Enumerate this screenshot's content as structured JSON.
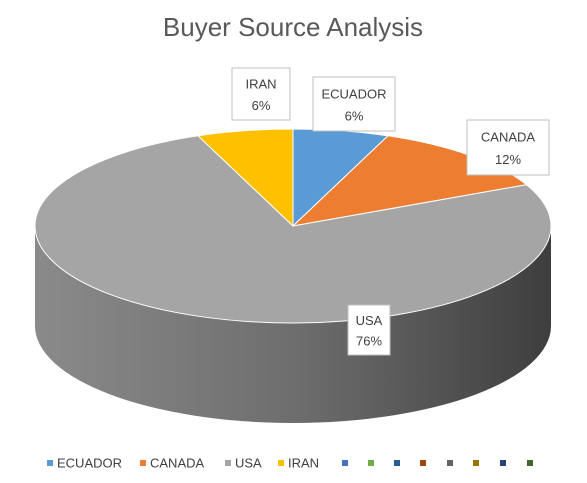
{
  "chart_data": {
    "type": "pie",
    "three_d": true,
    "title": "Buyer Source Analysis",
    "categories": [
      "ECUADOR",
      "CANADA",
      "USA",
      "IRAN",
      null,
      null,
      null,
      null,
      null,
      null,
      null,
      null
    ],
    "values": [
      6,
      12,
      76,
      6,
      null,
      null,
      null,
      null,
      null,
      null,
      null,
      null
    ],
    "value_labels": [
      "6%",
      "12%",
      "76%",
      "6%",
      null,
      null,
      null,
      null,
      null,
      null,
      null,
      null
    ],
    "colors": [
      "#5b9bd5",
      "#ed7d31",
      "#a5a5a5",
      "#ffc000",
      "#4472c4",
      "#70ad47",
      "#255e91",
      "#9e480e",
      "#636363",
      "#997300",
      "#264478",
      "#43682b"
    ],
    "legend": "bottom"
  }
}
